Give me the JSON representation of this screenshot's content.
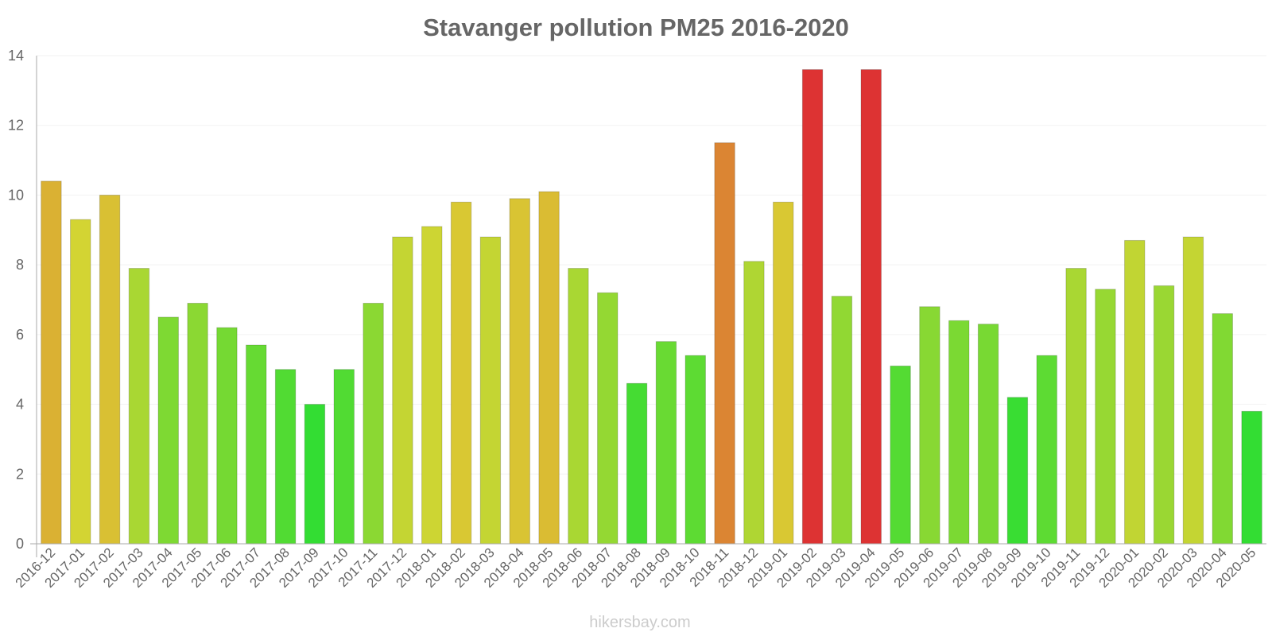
{
  "chart_data": {
    "type": "bar",
    "title": "Stavanger pollution PM25 2016-2020",
    "xlabel": "",
    "ylabel": "",
    "ylim": [
      0,
      14
    ],
    "yticks": [
      "0",
      "2",
      "4",
      "6",
      "8",
      "10",
      "12",
      "14"
    ],
    "grid": true,
    "legend": "none",
    "categories": [
      "2016-12",
      "2017-01",
      "2017-02",
      "2017-03",
      "2017-04",
      "2017-05",
      "2017-06",
      "2017-07",
      "2017-08",
      "2017-09",
      "2017-10",
      "2017-11",
      "2017-12",
      "2018-01",
      "2018-02",
      "2018-03",
      "2018-04",
      "2018-05",
      "2018-06",
      "2018-07",
      "2018-08",
      "2018-09",
      "2018-10",
      "2018-11",
      "2018-12",
      "2019-01",
      "2019-02",
      "2019-03",
      "2019-04",
      "2019-05",
      "2019-06",
      "2019-07",
      "2019-08",
      "2019-09",
      "2019-10",
      "2019-11",
      "2019-12",
      "2020-01",
      "2020-02",
      "2020-03",
      "2020-04",
      "2020-05"
    ],
    "values": [
      10.4,
      9.3,
      10.0,
      7.9,
      6.5,
      6.9,
      6.2,
      5.7,
      5.0,
      4.0,
      5.0,
      6.9,
      8.8,
      9.1,
      9.8,
      8.8,
      9.9,
      10.1,
      7.9,
      7.2,
      4.6,
      5.8,
      5.4,
      11.5,
      8.1,
      9.8,
      13.6,
      7.1,
      13.6,
      5.1,
      6.8,
      6.4,
      6.3,
      4.2,
      5.4,
      7.9,
      7.3,
      8.7,
      7.4,
      8.8,
      6.6,
      3.8
    ],
    "colors": {
      "low": "#33dd33",
      "mid": "#d9d433",
      "high": "#dd3333",
      "axis": "#aaaaaa",
      "grid": "#f2f2f2"
    },
    "credit": "hikersbay.com"
  }
}
